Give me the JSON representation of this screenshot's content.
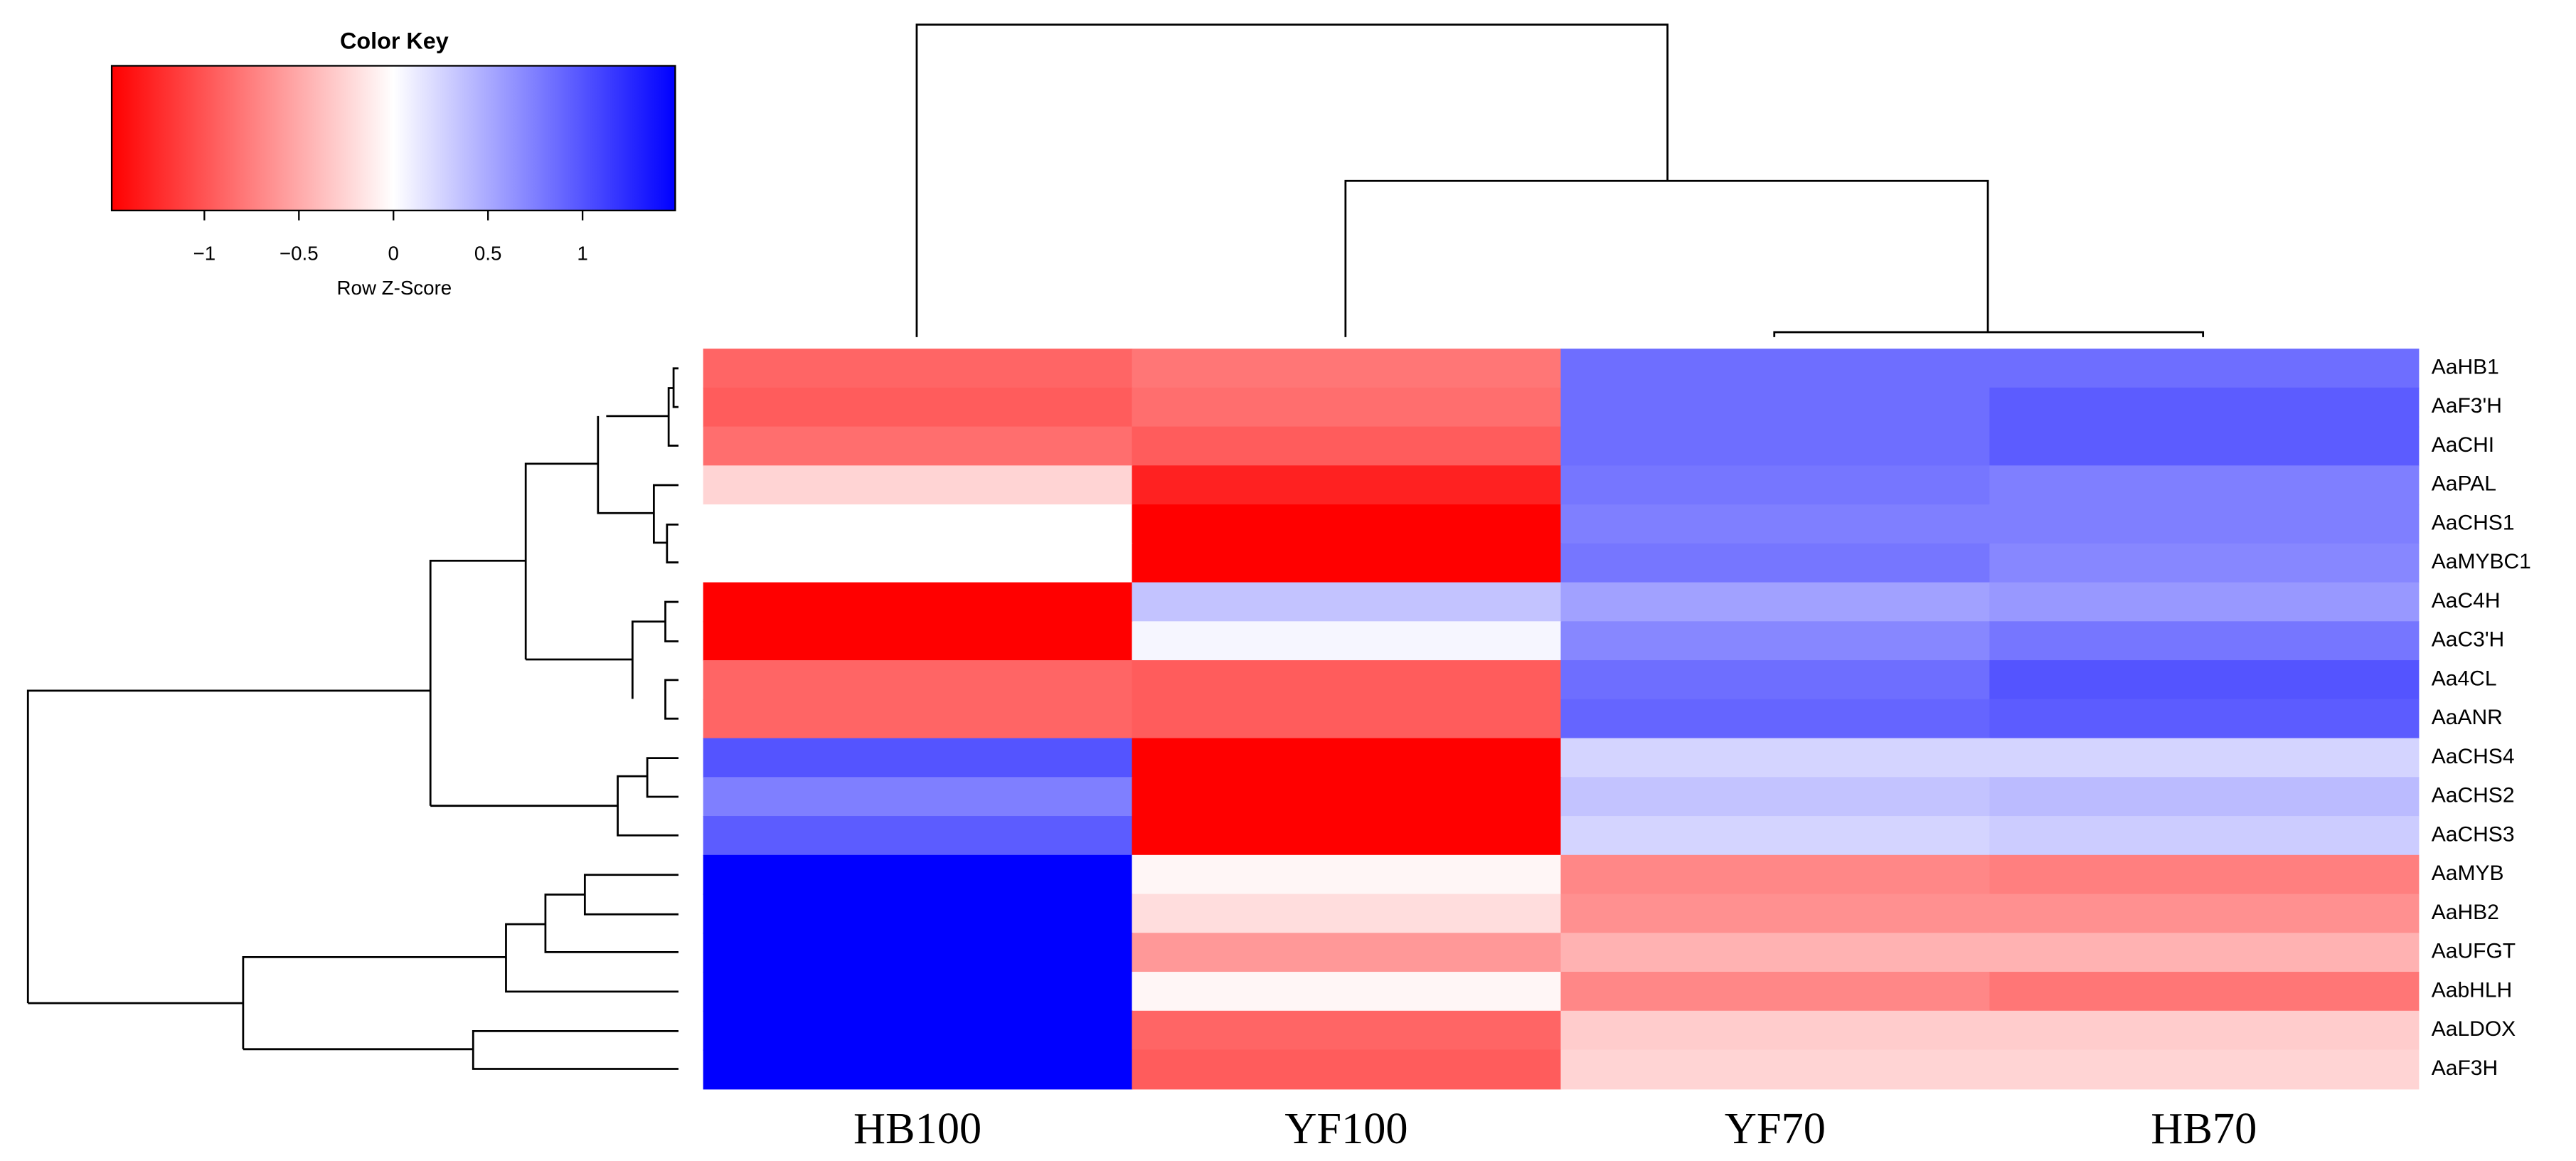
{
  "chart_data": {
    "type": "heatmap",
    "title": "Color Key",
    "colorbar_label": "Row Z-Score",
    "colorbar_lim": [
      -1.49,
      1.49
    ],
    "colorbar_ticks": [
      {
        "value": -1,
        "label": "−1"
      },
      {
        "value": -0.5,
        "label": "−0.5"
      },
      0,
      0.5,
      1
    ],
    "colormap": [
      "#ff0000",
      "#ffffff",
      "#0000ff"
    ],
    "columns": [
      "HB100",
      "YF100",
      "YF70",
      "HB70"
    ],
    "rows": [
      "AaHB1",
      "AaF3'H",
      "AaCHI",
      "AaPAL",
      "AaCHS1",
      "AaMYBC1",
      "AaC4H",
      "AaC3'H",
      "Aa4CL",
      "AaANR",
      "AaCHS4",
      "AaCHS2",
      "AaCHS3",
      "AaMYB",
      "AaHB2",
      "AaUFGT",
      "AabHLH",
      "AaLDOX",
      "AaF3H"
    ],
    "values": [
      [
        -0.9,
        -0.8,
        0.85,
        0.85
      ],
      [
        -0.95,
        -0.85,
        0.85,
        0.95
      ],
      [
        -0.85,
        -0.95,
        0.85,
        0.95
      ],
      [
        -0.25,
        -1.3,
        0.8,
        0.75
      ],
      [
        0,
        -1.49,
        0.75,
        0.75
      ],
      [
        0,
        -1.49,
        0.8,
        0.7
      ],
      [
        -1.49,
        0.35,
        0.55,
        0.6
      ],
      [
        -1.49,
        0.05,
        0.7,
        0.8
      ],
      [
        -0.9,
        -0.95,
        0.85,
        1.0
      ],
      [
        -0.9,
        -0.95,
        0.9,
        0.95
      ],
      [
        1.0,
        -1.49,
        0.25,
        0.25
      ],
      [
        0.75,
        -1.49,
        0.35,
        0.4
      ],
      [
        0.95,
        -1.49,
        0.25,
        0.3
      ],
      [
        1.49,
        -0.05,
        -0.7,
        -0.75
      ],
      [
        1.49,
        -0.2,
        -0.65,
        -0.65
      ],
      [
        1.49,
        -0.6,
        -0.45,
        -0.45
      ],
      [
        1.49,
        -0.05,
        -0.7,
        -0.8
      ],
      [
        1.49,
        -0.9,
        -0.3,
        -0.3
      ],
      [
        1.49,
        -0.95,
        -0.25,
        -0.25
      ]
    ]
  }
}
